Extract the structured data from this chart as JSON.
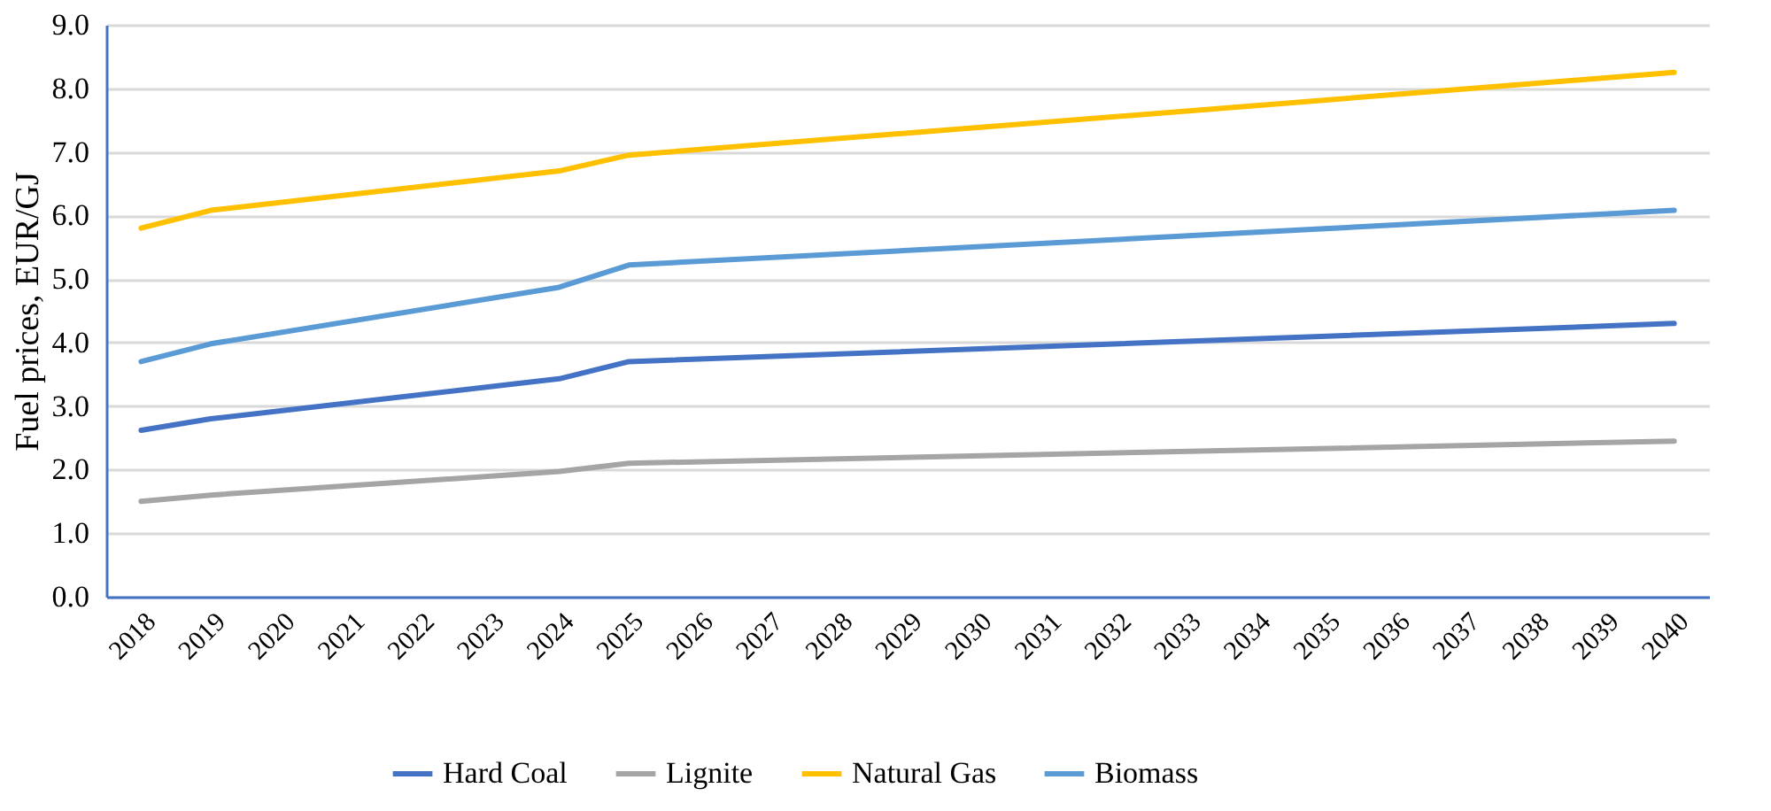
{
  "chart_data": {
    "type": "line",
    "ylabel": "Fuel prices, EUR/GJ",
    "xlim": [
      2017.5,
      2040.5
    ],
    "xticks": [
      2018,
      2019,
      2020,
      2021,
      2022,
      2023,
      2024,
      2025,
      2026,
      2027,
      2028,
      2029,
      2030,
      2031,
      2032,
      2033,
      2034,
      2035,
      2036,
      2037,
      2038,
      2039,
      2040
    ],
    "ylim": [
      0,
      9
    ],
    "yticks": [
      {
        "value": 0,
        "label": "0.0"
      },
      {
        "value": 1,
        "label": "1.0"
      },
      {
        "value": 2,
        "label": "2.0"
      },
      {
        "value": 3,
        "label": "3.0"
      },
      {
        "value": 4,
        "label": "4.0"
      },
      {
        "value": 5,
        "label": "5.0"
      },
      {
        "value": 6,
        "label": "6.0"
      },
      {
        "value": 7,
        "label": "7.0"
      },
      {
        "value": 8,
        "label": "8.0"
      },
      {
        "value": 9,
        "label": "9.0"
      }
    ],
    "grid": "y",
    "legend": "bottom",
    "series": [
      {
        "name": "Hard Coal",
        "color": "#4472c4",
        "x": [
          2018,
          2019,
          2024,
          2025,
          2040
        ],
        "values": [
          2.62,
          2.8,
          3.43,
          3.7,
          4.3
        ]
      },
      {
        "name": "Lignite",
        "color": "#a5a5a5",
        "x": [
          2018,
          2019,
          2024,
          2025,
          2040
        ],
        "values": [
          1.5,
          1.6,
          1.97,
          2.1,
          2.45
        ]
      },
      {
        "name": "Natural Gas",
        "color": "#ffc000",
        "x": [
          2018,
          2019,
          2024,
          2025,
          2040
        ],
        "values": [
          5.8,
          6.08,
          6.7,
          6.95,
          8.25
        ]
      },
      {
        "name": "Biomass",
        "color": "#5b9bd5",
        "x": [
          2018,
          2019,
          2024,
          2025,
          2040
        ],
        "values": [
          3.7,
          3.98,
          4.87,
          5.22,
          6.08
        ]
      }
    ]
  }
}
